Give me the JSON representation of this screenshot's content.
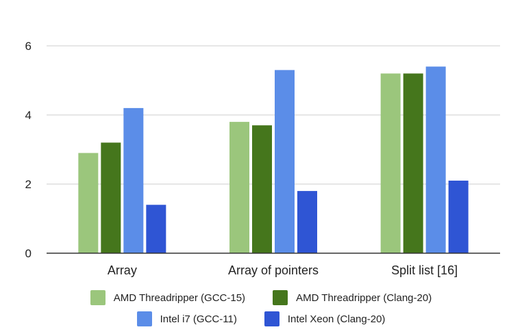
{
  "chart_data": {
    "type": "bar",
    "title": "",
    "xlabel": "",
    "ylabel": "",
    "ylim": [
      0,
      6
    ],
    "yticks": [
      0,
      2,
      4,
      6
    ],
    "grid": true,
    "legend_position": "bottom",
    "categories": [
      "Array",
      "Array of pointers",
      "Split list [16]"
    ],
    "series": [
      {
        "name": "AMD Threadripper (GCC-15)",
        "color": "#9bc67c",
        "values": [
          2.9,
          3.8,
          5.2
        ]
      },
      {
        "name": "AMD Threadripper (Clang-20)",
        "color": "#45761c",
        "values": [
          3.2,
          3.7,
          5.2
        ]
      },
      {
        "name": "Intel i7 (GCC-11)",
        "color": "#5b8de8",
        "values": [
          4.2,
          5.3,
          5.4
        ]
      },
      {
        "name": "Intel Xeon (Clang-20)",
        "color": "#2f55d4",
        "values": [
          1.4,
          1.8,
          2.1
        ]
      }
    ]
  }
}
